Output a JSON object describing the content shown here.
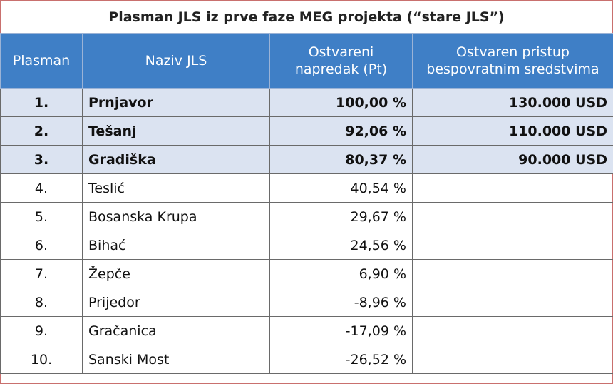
{
  "title": "Plasman JLS iz prve faze MEG projekta (“stare JLS”)",
  "table": {
    "header": [
      [
        "Plasman"
      ],
      [
        "Naziv JLS"
      ],
      [
        "Ostvareni",
        "napredak (Pt)"
      ],
      [
        "Ostvaren pristup",
        "bespovratnim sredstvima"
      ]
    ],
    "rows": [
      [
        "1.",
        "Prnjavor",
        "100,00 %",
        "130.000 USD"
      ],
      [
        "2.",
        "Tešanj",
        "92,06 %",
        "110.000 USD"
      ],
      [
        "3.",
        "Gradiška",
        "80,37 %",
        "90.000 USD"
      ],
      [
        "4.",
        "Teslić",
        "40,54 %"
      ],
      [
        "5.",
        "Bosanska Krupa",
        "29,67 %"
      ],
      [
        "6.",
        "Bihać",
        "24,56 %"
      ],
      [
        "7.",
        "Žepče",
        "6,90 %"
      ],
      [
        "8.",
        "Prijedor",
        "-8,96 %"
      ],
      [
        "9.",
        "Gračanica",
        "-17,09 %"
      ],
      [
        "10.",
        "Sanski Most",
        "-26,52 %"
      ]
    ],
    "highlighted_rows": 3
  }
}
